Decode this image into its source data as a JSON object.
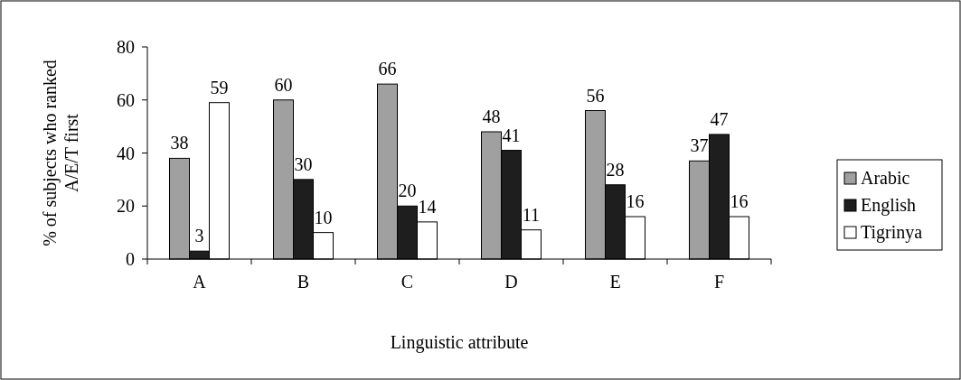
{
  "chart_data": {
    "type": "bar",
    "xlabel": "Linguistic attribute",
    "ylabel": "% of subjects who ranked\nA/E/T first",
    "categories": [
      "A",
      "B",
      "C",
      "D",
      "E",
      "F"
    ],
    "series": [
      {
        "name": "Arabic",
        "color": "#a0a0a0",
        "values": [
          38,
          60,
          66,
          48,
          56,
          37
        ]
      },
      {
        "name": "English",
        "color": "#1e1e1e",
        "values": [
          3,
          30,
          20,
          41,
          28,
          47
        ]
      },
      {
        "name": "Tigrinya",
        "color": "#ffffff",
        "values": [
          59,
          10,
          14,
          11,
          16,
          16
        ]
      }
    ],
    "ylim": [
      0,
      80
    ],
    "yticks": [
      0,
      20,
      40,
      60,
      80
    ],
    "data_labels": true,
    "legend": "right",
    "grid": false
  }
}
